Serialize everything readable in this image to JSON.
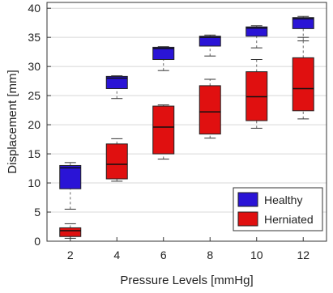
{
  "chart_data": {
    "type": "box",
    "title": "",
    "xlabel": "Pressure Levels [mmHg]",
    "ylabel": "Displacement [mm]",
    "categories": [
      "2",
      "4",
      "6",
      "8",
      "10",
      "12"
    ],
    "ylim": [
      0,
      41
    ],
    "yticks": [
      0,
      5,
      10,
      15,
      20,
      25,
      30,
      35,
      40
    ],
    "grid": true,
    "legend_position": "bottom-right",
    "series": [
      {
        "name": "Healthy",
        "color": "#2a14d6",
        "boxes": [
          {
            "min": 5.5,
            "q1": 9.0,
            "median": 12.6,
            "q3": 13.0,
            "max": 13.5
          },
          {
            "min": 24.5,
            "q1": 26.2,
            "median": 28.0,
            "q3": 28.3,
            "max": 28.4
          },
          {
            "min": 29.3,
            "q1": 31.2,
            "median": 33.1,
            "q3": 33.3,
            "max": 33.4
          },
          {
            "min": 31.8,
            "q1": 33.5,
            "median": 35.0,
            "q3": 35.2,
            "max": 35.4
          },
          {
            "min": 33.2,
            "q1": 35.2,
            "median": 36.6,
            "q3": 36.8,
            "max": 37.0
          },
          {
            "min": 34.4,
            "q1": 36.5,
            "median": 38.2,
            "q3": 38.4,
            "max": 38.6
          }
        ]
      },
      {
        "name": "Herniated",
        "color": "#e01010",
        "boxes": [
          {
            "min": 0.5,
            "q1": 0.8,
            "median": 1.8,
            "q3": 2.3,
            "max": 3.0
          },
          {
            "min": 10.3,
            "q1": 10.7,
            "median": 13.2,
            "q3": 16.7,
            "max": 17.6
          },
          {
            "min": 14.1,
            "q1": 15.0,
            "median": 19.6,
            "q3": 23.2,
            "max": 23.4
          },
          {
            "min": 17.7,
            "q1": 18.4,
            "median": 22.2,
            "q3": 26.7,
            "max": 27.8
          },
          {
            "min": 19.4,
            "q1": 20.7,
            "median": 24.8,
            "q3": 29.1,
            "max": 31.2
          },
          {
            "min": 21.0,
            "q1": 22.4,
            "median": 26.2,
            "q3": 31.5,
            "max": 35.0
          }
        ]
      }
    ]
  }
}
